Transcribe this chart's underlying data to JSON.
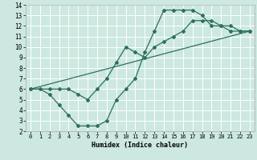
{
  "xlabel": "Humidex (Indice chaleur)",
  "xlim": [
    -0.5,
    23.5
  ],
  "ylim": [
    2,
    14
  ],
  "xticks": [
    0,
    1,
    2,
    3,
    4,
    5,
    6,
    7,
    8,
    9,
    10,
    11,
    12,
    13,
    14,
    15,
    16,
    17,
    18,
    19,
    20,
    21,
    22,
    23
  ],
  "yticks": [
    2,
    3,
    4,
    5,
    6,
    7,
    8,
    9,
    10,
    11,
    12,
    13,
    14
  ],
  "bg_color": "#cce8e0",
  "grid_color": "#ffffff",
  "line_color": "#2e6e62",
  "curve1_x": [
    0,
    1,
    2,
    3,
    4,
    5,
    6,
    7,
    8,
    9,
    10,
    11,
    12,
    13,
    14,
    15,
    16,
    17,
    18,
    19,
    20,
    21,
    22,
    23
  ],
  "curve1_y": [
    6,
    6,
    5.5,
    4.5,
    3.5,
    2.5,
    2.5,
    2.5,
    3.0,
    5.0,
    6.0,
    7.0,
    9.5,
    11.5,
    13.5,
    13.5,
    13.5,
    13.5,
    13.0,
    12.0,
    12.0,
    11.5,
    11.5,
    11.5
  ],
  "curve2_x": [
    0,
    2,
    3,
    4,
    5,
    6,
    7,
    8,
    9,
    10,
    11,
    12,
    13,
    14,
    15,
    16,
    17,
    18,
    19,
    20,
    21,
    22,
    23
  ],
  "curve2_y": [
    6,
    6,
    6,
    6,
    5.5,
    5.0,
    6.0,
    7.0,
    8.5,
    10.0,
    9.5,
    9.0,
    10.0,
    10.5,
    11.0,
    11.5,
    12.5,
    12.5,
    12.5,
    12.0,
    12.0,
    11.5,
    11.5
  ],
  "curve3_x": [
    0,
    23
  ],
  "curve3_y": [
    6,
    11.5
  ],
  "marker": "D",
  "markersize": 2.0,
  "linewidth": 0.9
}
